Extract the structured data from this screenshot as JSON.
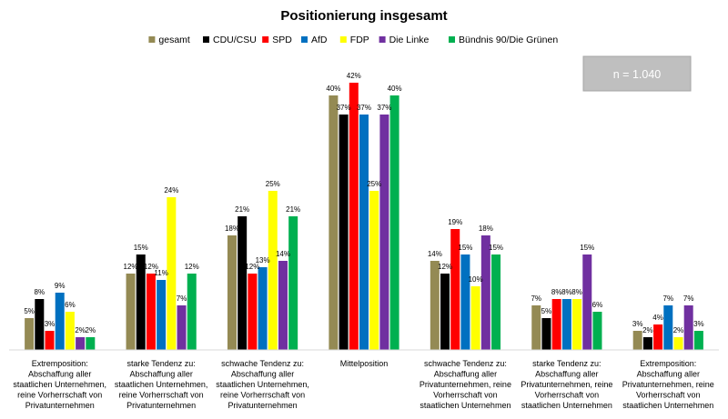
{
  "chart_data": {
    "type": "bar",
    "title": "Positionierung insgesamt",
    "xlabel": "",
    "ylabel": "",
    "ylim": [
      0,
      45
    ],
    "grid": false,
    "legend_position": "top",
    "annotation": "n = 1.040",
    "unit": "%",
    "categories": [
      [
        "Extremposition:",
        "Abschaffung aller",
        "staatlichen Unternehmen,",
        "reine Vorherrschaft von",
        "Privatunternehmen"
      ],
      [
        "starke Tendenz zu:",
        "Abschaffung aller",
        "staatlichen Unternehmen,",
        "reine Vorherrschaft von",
        "Privatunternehmen"
      ],
      [
        "schwache Tendenz zu:",
        "Abschaffung aller",
        "staatlichen Unternehmen,",
        "reine Vorherrschaft von",
        "Privatunternehmen"
      ],
      [
        "Mittelposition"
      ],
      [
        "schwache Tendenz zu:",
        "Abschaffung aller",
        "Privatunternehmen, reine",
        "Vorherrschaft von",
        "staatlichen Unternehmen"
      ],
      [
        "starke Tendenz zu:",
        "Abschaffung aller",
        "Privatunternehmen, reine",
        "Vorherrschaft von",
        "staatlichen Unternehmen"
      ],
      [
        "Extremposition:",
        "Abschaffung aller",
        "Privatunternehmen, reine",
        "Vorherrschaft von",
        "staatlichen Unternehmen"
      ]
    ],
    "series": [
      {
        "name": "gesamt",
        "color": "#948A54",
        "values": [
          5,
          12,
          18,
          40,
          14,
          7,
          3
        ]
      },
      {
        "name": "CDU/CSU",
        "color": "#000000",
        "values": [
          8,
          15,
          21,
          37,
          12,
          5,
          2
        ]
      },
      {
        "name": "SPD",
        "color": "#FF0000",
        "values": [
          3,
          12,
          12,
          42,
          19,
          8,
          4
        ]
      },
      {
        "name": "AfD",
        "color": "#0070C0",
        "values": [
          9,
          11,
          13,
          37,
          15,
          8,
          7
        ]
      },
      {
        "name": "FDP",
        "color": "#FFFF00",
        "values": [
          6,
          24,
          25,
          25,
          10,
          8,
          2
        ]
      },
      {
        "name": "Die Linke",
        "color": "#7030A0",
        "values": [
          2,
          7,
          14,
          37,
          18,
          15,
          7
        ]
      },
      {
        "name": "Bündnis 90/Die Grünen",
        "color": "#00B050",
        "values": [
          2,
          12,
          21,
          40,
          15,
          6,
          3
        ]
      }
    ]
  }
}
